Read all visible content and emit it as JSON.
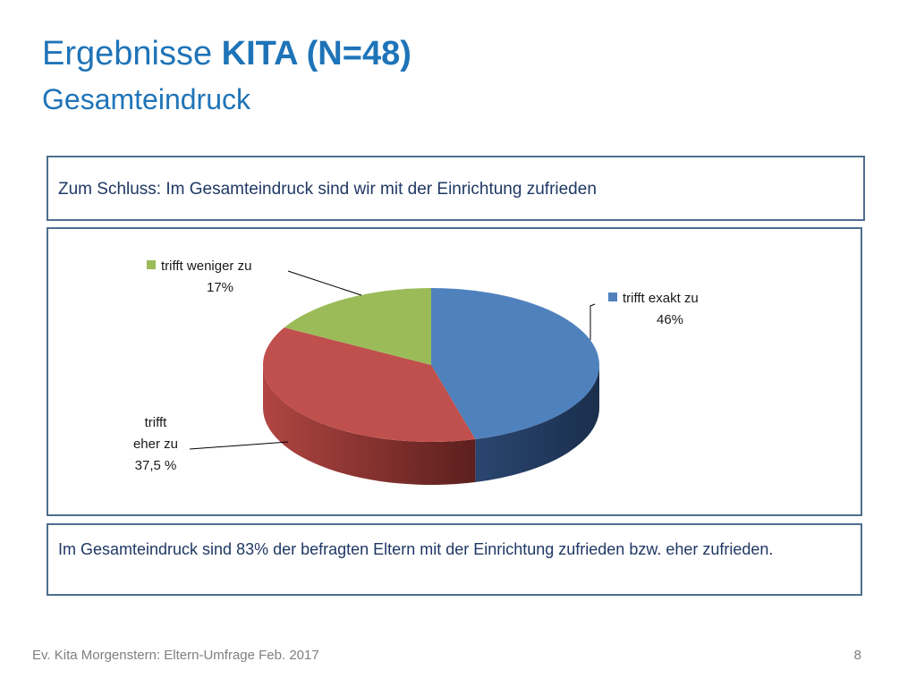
{
  "header": {
    "title_prefix": "Ergebnisse ",
    "title_bold": "KITA (N=48)",
    "subtitle": "Gesamteindruck"
  },
  "question": "Zum Schluss: Im Gesamteindruck sind wir mit der Einrichtung zufrieden",
  "summary": "Im Gesamteindruck sind 83% der befragten Eltern mit der Einrichtung zufrieden bzw. eher zufrieden.",
  "footer": {
    "source": "Ev. Kita Morgenstern: Eltern-Umfrage Feb. 2017",
    "page": "8"
  },
  "chart_data": {
    "type": "pie",
    "style": "3d",
    "title": "",
    "slices": [
      {
        "label": "trifft exakt zu",
        "value": 46,
        "value_label": "46%",
        "color": "#4f81bd",
        "legend_marker": true
      },
      {
        "label": "trifft eher zu",
        "value": 37.5,
        "value_label": "37,5 %",
        "color": "#c0504d",
        "legend_marker": false
      },
      {
        "label": "trifft weniger zu",
        "value": 17,
        "value_label": "17%",
        "color": "#9bbb59",
        "legend_marker": true
      }
    ]
  }
}
